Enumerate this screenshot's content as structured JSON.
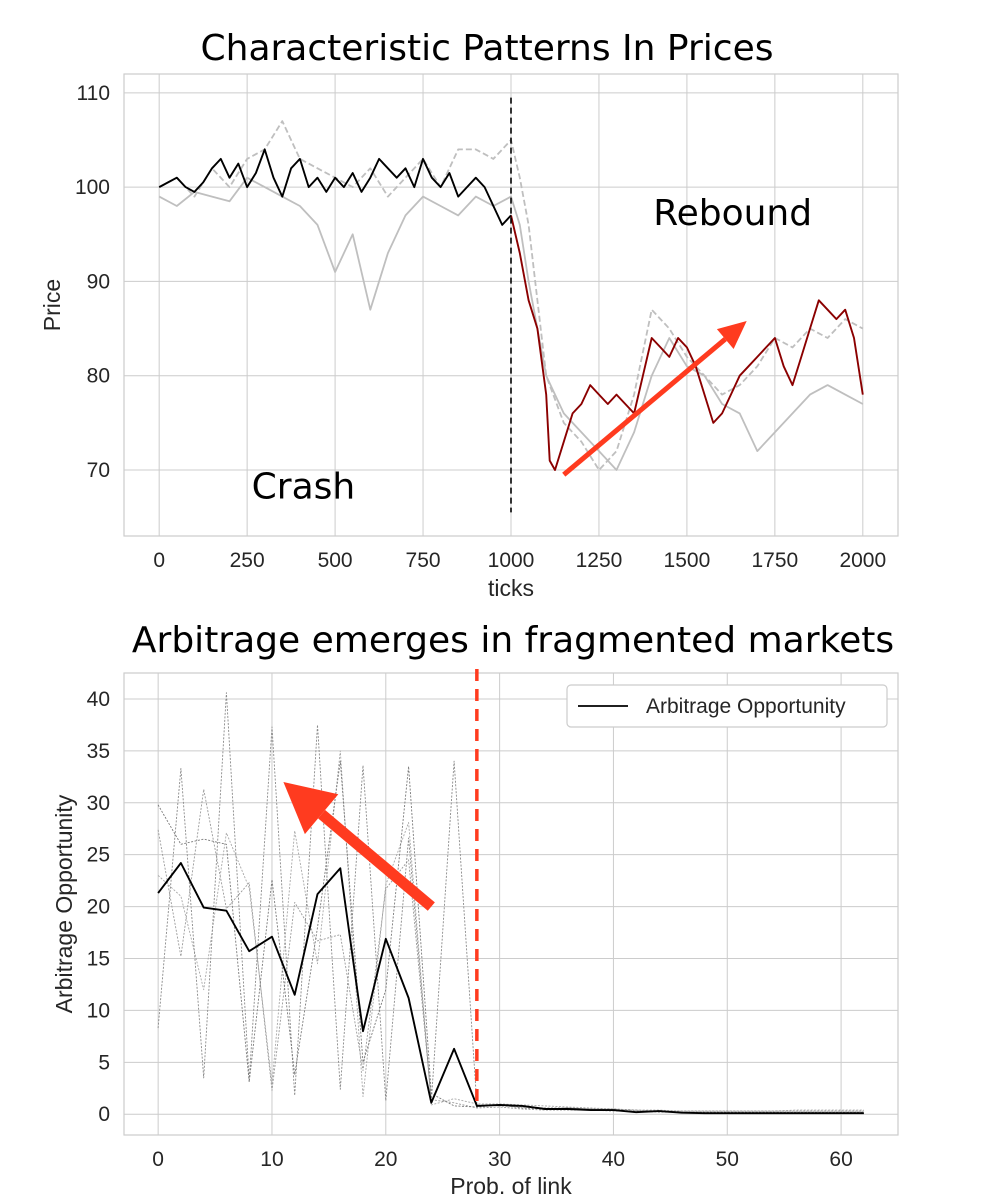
{
  "chart_data": [
    {
      "type": "line",
      "title": "Characteristic Patterns In Prices",
      "xlabel": "ticks",
      "ylabel": "Price",
      "xlim": [
        -100,
        2100
      ],
      "ylim": [
        63,
        112
      ],
      "xticks": [
        0,
        250,
        500,
        750,
        1000,
        1250,
        1500,
        1750,
        2000
      ],
      "yticks": [
        70,
        80,
        90,
        100,
        110
      ],
      "grid": true,
      "vline": {
        "x": 1000,
        "style": "dashed",
        "color": "#000000"
      },
      "annotations": [
        {
          "text": "Crash",
          "x": 410,
          "y": 67
        },
        {
          "text": "Rebound",
          "x": 1630,
          "y": 96
        }
      ],
      "arrow": {
        "from": [
          1150,
          69.5
        ],
        "to": [
          1670,
          85.8
        ],
        "color": "#ff3b1f"
      },
      "series": [
        {
          "role": "main-before-crash",
          "color": "#000000",
          "x": [
            0,
            25,
            50,
            75,
            100,
            125,
            150,
            175,
            200,
            225,
            250,
            275,
            300,
            325,
            350,
            375,
            400,
            425,
            450,
            475,
            500,
            525,
            550,
            575,
            600,
            625,
            650,
            675,
            700,
            725,
            750,
            775,
            800,
            825,
            850,
            875,
            900,
            925,
            950,
            975,
            1000
          ],
          "y": [
            100,
            100.5,
            101,
            100,
            99.5,
            100.5,
            102,
            103,
            101,
            102.5,
            100,
            101.5,
            104,
            101,
            99,
            102,
            103,
            100,
            101,
            99.5,
            101,
            100,
            101.5,
            99.5,
            101,
            103,
            102,
            101,
            102,
            100,
            103,
            101,
            100,
            101.5,
            99,
            100,
            101,
            100,
            98,
            96,
            97
          ]
        },
        {
          "role": "main-after-crash",
          "color": "#8b0000",
          "x": [
            1000,
            1025,
            1050,
            1075,
            1100,
            1110,
            1125,
            1150,
            1175,
            1200,
            1225,
            1250,
            1275,
            1300,
            1325,
            1350,
            1375,
            1400,
            1425,
            1450,
            1475,
            1500,
            1525,
            1550,
            1575,
            1600,
            1625,
            1650,
            1675,
            1700,
            1725,
            1750,
            1775,
            1800,
            1825,
            1850,
            1875,
            1900,
            1925,
            1950,
            1975,
            2000
          ],
          "y": [
            97,
            93,
            88,
            85,
            78,
            71,
            70,
            73,
            76,
            77,
            79,
            78,
            77,
            78,
            77,
            76,
            80,
            84,
            83,
            82,
            84,
            83,
            81,
            78,
            75,
            76,
            78,
            80,
            81,
            82,
            83,
            84,
            81,
            79,
            82,
            85,
            88,
            87,
            86,
            87,
            84,
            78
          ]
        },
        {
          "role": "other-1",
          "color": "#bfbfbf",
          "dashed": true,
          "x": [
            0,
            50,
            100,
            150,
            200,
            250,
            300,
            350,
            400,
            450,
            500,
            550,
            600,
            650,
            700,
            750,
            800,
            850,
            900,
            950,
            1000,
            1025,
            1050,
            1075,
            1100,
            1150,
            1200,
            1250,
            1300,
            1350,
            1400,
            1450,
            1500,
            1550,
            1600,
            1650,
            1700,
            1750,
            1800,
            1850,
            1900,
            1950,
            2000
          ],
          "y": [
            100,
            101,
            99,
            102,
            100,
            103,
            104,
            107,
            103,
            102,
            101,
            100,
            102,
            99,
            101,
            103,
            100,
            104,
            104,
            103,
            105,
            101,
            96,
            88,
            80,
            75,
            73,
            70,
            72,
            78,
            87,
            85,
            82,
            80,
            78,
            79,
            81,
            84,
            83,
            85,
            84,
            86,
            85
          ]
        },
        {
          "role": "other-2",
          "color": "#bfbfbf",
          "x": [
            0,
            50,
            100,
            150,
            200,
            250,
            300,
            350,
            400,
            450,
            500,
            550,
            600,
            650,
            700,
            750,
            800,
            850,
            900,
            950,
            1000,
            1025,
            1050,
            1075,
            1100,
            1150,
            1200,
            1250,
            1300,
            1350,
            1400,
            1450,
            1500,
            1550,
            1600,
            1650,
            1700,
            1750,
            1800,
            1850,
            1900,
            1950,
            2000
          ],
          "y": [
            99,
            98,
            99.5,
            99,
            98.5,
            101,
            100,
            99,
            98,
            96,
            91,
            95,
            87,
            93,
            97,
            99,
            98,
            97,
            99,
            98,
            99,
            96,
            90,
            85,
            80,
            76,
            74,
            72,
            70,
            74,
            80,
            84,
            81,
            80,
            77,
            76,
            72,
            74,
            76,
            78,
            79,
            78,
            77
          ]
        }
      ]
    },
    {
      "type": "line",
      "title": "Arbitrage emerges in fragmented markets",
      "xlabel": "Prob. of link",
      "ylabel": "Arbitrage Opportunity",
      "xlim": [
        -3,
        65
      ],
      "ylim": [
        -2,
        42.5
      ],
      "xticks": [
        0,
        10,
        20,
        30,
        40,
        50,
        60
      ],
      "yticks": [
        0,
        5,
        10,
        15,
        20,
        25,
        30,
        35,
        40
      ],
      "grid": true,
      "legend": {
        "position": "top-right",
        "entries": [
          "Arbitrage Opportunity"
        ]
      },
      "vline": {
        "x": 28,
        "style": "dashed",
        "color": "#ff3b1f"
      },
      "arrow": {
        "from": [
          24,
          20
        ],
        "to": [
          11,
          32
        ],
        "color": "#ff3b1f"
      },
      "x": [
        0,
        2,
        4,
        6,
        8,
        10,
        12,
        14,
        16,
        18,
        20,
        22,
        24,
        26,
        28,
        30,
        32,
        34,
        36,
        38,
        40,
        42,
        44,
        46,
        48,
        50,
        52,
        54,
        56,
        58,
        60,
        62
      ],
      "series": [
        {
          "name": "Arbitrage Opportunity",
          "color": "#000000",
          "values": [
            21.3,
            24.2,
            19.9,
            19.6,
            15.7,
            17.1,
            11.5,
            21.2,
            23.7,
            8,
            16.9,
            11.2,
            1.1,
            6.3,
            0.8,
            0.9,
            0.8,
            0.5,
            0.5,
            0.4,
            0.4,
            0.2,
            0.3,
            0.15,
            0.1,
            0.1,
            0.1,
            0.1,
            0.1,
            0.1,
            0.1,
            0.1
          ]
        },
        {
          "role": "replicate-1",
          "color": "#7a7a7a",
          "values": [
            29.8,
            26,
            26.5,
            26,
            3.1,
            22.6,
            3.8,
            18,
            34,
            5,
            12,
            33.5,
            2,
            0.8,
            0.7,
            0.9,
            0.6,
            0.5,
            0.6,
            0.5,
            0.4,
            0.3,
            0.3,
            0.2,
            0.2,
            0.2,
            0.2,
            0.2,
            0.2,
            0.2,
            0.2,
            0.2
          ]
        },
        {
          "role": "replicate-2",
          "color": "#8a8a8a",
          "values": [
            8.3,
            33.3,
            3.5,
            40.6,
            3.3,
            37.3,
            1.8,
            37.5,
            2.4,
            33.6,
            1.3,
            26.6,
            1.2,
            34,
            0.9,
            0.8,
            0.7,
            0.6,
            0.6,
            0.5,
            0.5,
            0.4,
            0.3,
            0.3,
            0.3,
            0.3,
            0.3,
            0.3,
            0.3,
            0.3,
            0.3,
            0.3
          ]
        },
        {
          "role": "replicate-3",
          "color": "#9a9a9a",
          "values": [
            27.4,
            15.2,
            31.3,
            19.8,
            22.3,
            2.3,
            20.4,
            16.7,
            17.3,
            4.2,
            21.7,
            24.5,
            1.4,
            1.1,
            0.6,
            0.7,
            0.5,
            0.4,
            0.4,
            0.4,
            0.3,
            0.3,
            0.2,
            0.2,
            0.2,
            0.2,
            0.2,
            0.2,
            0.2,
            0.2,
            0.2,
            0.2
          ]
        },
        {
          "role": "replicate-4",
          "color": "#a8a8a8",
          "values": [
            23,
            21,
            12,
            27.1,
            21.8,
            2.9,
            27.3,
            14.5,
            35,
            1.7,
            22.1,
            28.1,
            0.9,
            1.5,
            1,
            1,
            0.9,
            0.8,
            0.7,
            0.6,
            0.5,
            0.4,
            0.4,
            0.3,
            0.3,
            0.3,
            0.3,
            0.3,
            0.4,
            0.4,
            0.4,
            0.4
          ]
        }
      ]
    }
  ]
}
